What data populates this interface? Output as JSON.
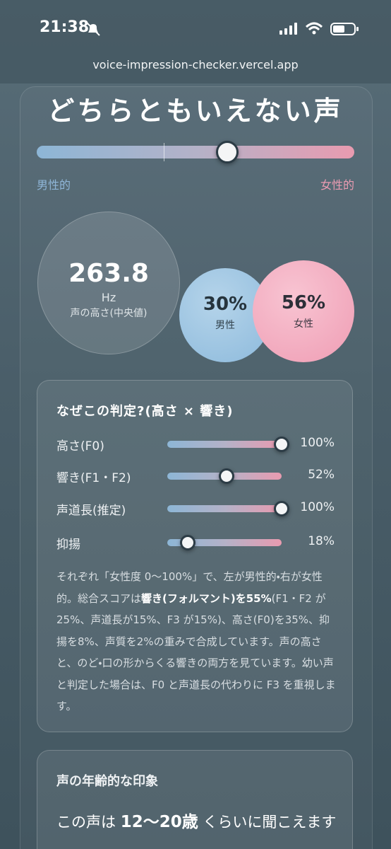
{
  "status_bar": {
    "time": "21:38"
  },
  "url": "voice-impression-checker.vercel.app",
  "result": {
    "title": "どちらともいえない声",
    "score": 60,
    "scale_left": "男性的",
    "scale_right": "女性的"
  },
  "pitch": {
    "value": "263.8",
    "unit": "Hz",
    "label": "声の高さ(中央値)"
  },
  "male": {
    "value": "30%",
    "label": "男性"
  },
  "female": {
    "value": "56%",
    "label": "女性"
  },
  "reasons": {
    "title": "なぜこの判定?(高さ × 響き)",
    "items": [
      {
        "label": "高さ(F0)",
        "value": 100,
        "value_label": "100%"
      },
      {
        "label": "響き(F1・F2)",
        "value": 52,
        "value_label": "52%"
      },
      {
        "label": "声道長(推定)",
        "value": 100,
        "value_label": "100%"
      },
      {
        "label": "抑揚",
        "value": 18,
        "value_label": "18%"
      }
    ],
    "note_before": "それぞれ「女性度 0〜100%」で、左が男性的・右が女性的。総合スコアは",
    "note_bold": "響き(フォルマント)を55%",
    "note_after": "(F1・F2 が25%、声道長が15%、F3 が15%)、高さ(F0)を35%、抑揚を8%、声質を2%の重みで合成しています。声の高さと、のど・口の形からくる響きの両方を見ています。幼い声と判定した場合は、F0 と声道長の代わりに F3 を重視します。"
  },
  "age": {
    "title": "声の年齢的な印象",
    "text_before": "この声は",
    "range": "12〜20歳",
    "text_after": "くらいに聞こえます"
  }
}
